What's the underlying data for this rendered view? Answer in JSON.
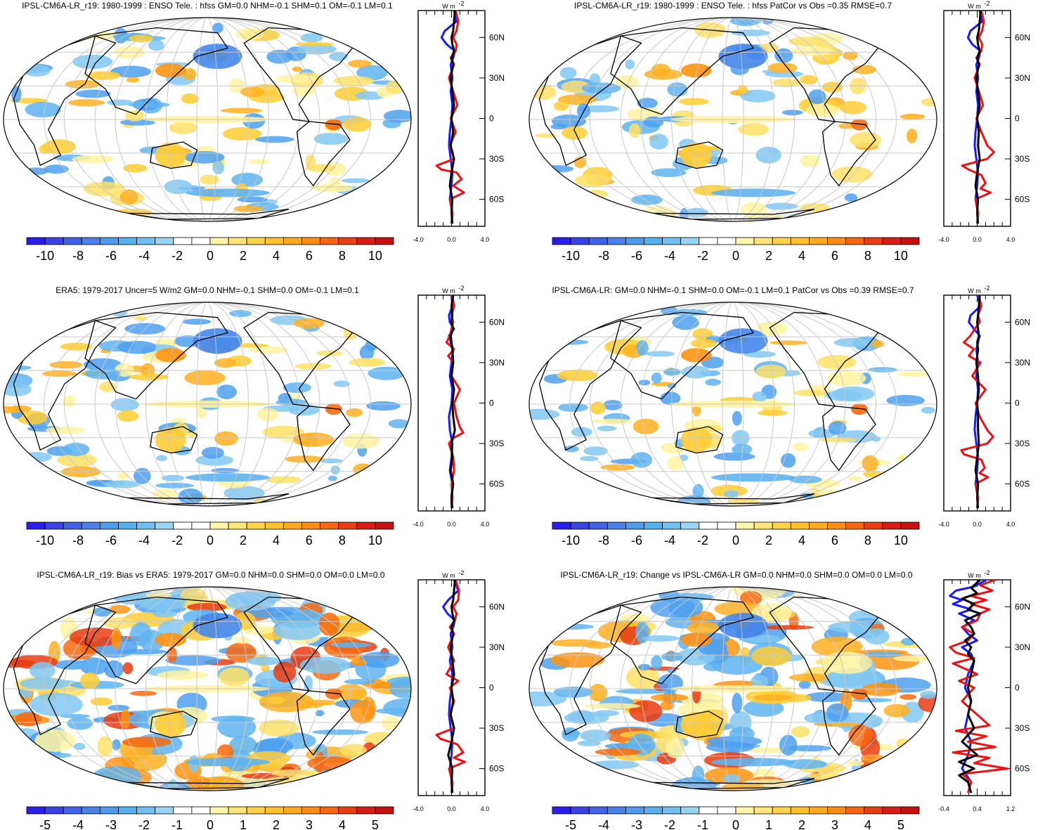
{
  "panels": [
    {
      "title": "IPSL-CM6A-LR_r19: 1980-1999 : ENSO Tele. : hfss GM=0.0 NHM=-0.1 SHM=0.1 OM=-0.1 LM=0.1",
      "colorbar_labels": [
        "-10",
        "-8",
        "-6",
        "-4",
        "-2",
        "0",
        "2",
        "4",
        "6",
        "8",
        "10"
      ],
      "zonal_xticks": [
        "-4.0",
        "0.0",
        "4.0"
      ],
      "zonal_yticks": [
        "60N",
        "30N",
        "0",
        "30S",
        "60S"
      ],
      "zonal_xrange": [
        -4,
        4
      ],
      "unit": "W m",
      "unit_exp": "-2",
      "zonal_series": [
        {
          "color": "#1a1aff",
          "lat": [
            80,
            72,
            65,
            60,
            55,
            50,
            45,
            40,
            30,
            20,
            10,
            0,
            -10,
            -20,
            -30,
            -40,
            -50,
            -60,
            -70,
            -78
          ],
          "val": [
            0.3,
            0.6,
            -0.8,
            -1.2,
            -0.6,
            0.4,
            0.2,
            -0.1,
            0.1,
            -0.1,
            0.1,
            0.0,
            -0.2,
            -0.3,
            -0.1,
            0.1,
            0.0,
            -0.2,
            0.1,
            0.0
          ]
        },
        {
          "color": "#ee1111",
          "lat": [
            80,
            72,
            65,
            60,
            55,
            50,
            45,
            40,
            30,
            20,
            10,
            0,
            -10,
            -20,
            -30,
            -35,
            -38,
            -40,
            -45,
            -50,
            -55,
            -60,
            -70,
            -78
          ],
          "val": [
            0.5,
            0.8,
            0.6,
            0.2,
            0.6,
            0.5,
            -0.1,
            0.3,
            -0.3,
            0.2,
            0.7,
            -0.1,
            0.5,
            -0.2,
            0.3,
            -1.8,
            -1.2,
            0.6,
            1.2,
            0.2,
            1.5,
            -0.2,
            0.1,
            0.0
          ]
        },
        {
          "color": "#000000",
          "lat": [
            80,
            72,
            65,
            60,
            55,
            50,
            45,
            40,
            30,
            20,
            10,
            0,
            -10,
            -20,
            -30,
            -40,
            -50,
            -60,
            -70,
            -78
          ],
          "val": [
            0.4,
            0.3,
            0.2,
            0.0,
            0.1,
            0.3,
            0.0,
            0.2,
            -0.1,
            0.1,
            0.3,
            0.0,
            0.2,
            -0.1,
            0.3,
            0.0,
            -0.2,
            0.1,
            0.0,
            0.1
          ]
        }
      ]
    },
    {
      "title": "IPSL-CM6A-LR_r19: 1980-1999 : ENSO Tele. : hfss PatCor vs Obs =0.35 RMSE=0.7",
      "colorbar_labels": [
        "-10",
        "-8",
        "-6",
        "-4",
        "-2",
        "0",
        "2",
        "4",
        "6",
        "8",
        "10"
      ],
      "zonal_xticks": [
        "-4.0",
        "0.0",
        "4.0"
      ],
      "zonal_yticks": [
        "60N",
        "30N",
        "0",
        "30S",
        "60S"
      ],
      "zonal_xrange": [
        -4,
        4
      ],
      "unit": "W m",
      "unit_exp": "-2",
      "zonal_series": [
        {
          "color": "#1a1aff",
          "lat": [
            80,
            72,
            65,
            60,
            55,
            50,
            45,
            40,
            30,
            20,
            10,
            0,
            -10,
            -20,
            -30,
            -40,
            -50,
            -60,
            -70,
            -78
          ],
          "val": [
            0.3,
            0.6,
            -0.8,
            -1.1,
            -0.6,
            0.4,
            0.2,
            -0.1,
            0.1,
            -0.1,
            0.1,
            0.0,
            -0.2,
            -0.3,
            -0.1,
            0.1,
            0.0,
            -0.2,
            0.1,
            0.0
          ]
        },
        {
          "color": "#ee1111",
          "lat": [
            80,
            72,
            65,
            60,
            55,
            50,
            45,
            40,
            30,
            20,
            10,
            0,
            -10,
            -20,
            -25,
            -30,
            -35,
            -38,
            -42,
            -48,
            -52,
            -55,
            -60,
            -70,
            -78
          ],
          "val": [
            0.5,
            0.8,
            0.6,
            0.2,
            0.6,
            0.5,
            -0.1,
            0.3,
            -0.3,
            0.2,
            0.7,
            -0.1,
            0.5,
            1.2,
            2.0,
            1.2,
            -1.8,
            -1.0,
            0.5,
            1.0,
            0.4,
            1.6,
            -0.2,
            0.1,
            0.0
          ]
        },
        {
          "color": "#000000",
          "lat": [
            80,
            72,
            65,
            60,
            55,
            50,
            45,
            40,
            30,
            20,
            10,
            0,
            -10,
            -20,
            -30,
            -40,
            -50,
            -60,
            -70,
            -78
          ],
          "val": [
            0.4,
            0.3,
            0.2,
            0.0,
            0.1,
            0.3,
            0.0,
            0.2,
            -0.1,
            0.1,
            0.3,
            0.0,
            0.2,
            0.1,
            0.3,
            0.0,
            -0.2,
            0.1,
            0.0,
            0.1
          ]
        }
      ]
    },
    {
      "title": "ERA5: 1979-2017 Uncer=5 W/m2 GM=0.0 NHM=-0.1 SHM=0.0 OM=-0.1 LM=0.1",
      "colorbar_labels": [
        "-10",
        "-8",
        "-6",
        "-4",
        "-2",
        "0",
        "2",
        "4",
        "6",
        "8",
        "10"
      ],
      "zonal_xticks": [
        "-4.0",
        "0.0",
        "4.0"
      ],
      "zonal_yticks": [
        "60N",
        "30N",
        "0",
        "30S",
        "60S"
      ],
      "zonal_xrange": [
        -4,
        4
      ],
      "unit": "W m",
      "unit_exp": "-2",
      "zonal_series": [
        {
          "color": "#1a1aff",
          "lat": [
            80,
            72,
            65,
            60,
            55,
            50,
            45,
            40,
            30,
            20,
            10,
            0,
            -10,
            -20,
            -30,
            -40,
            -50,
            -60,
            -70,
            -78
          ],
          "val": [
            0.0,
            0.1,
            -0.3,
            -0.2,
            0.3,
            -0.3,
            -0.1,
            0.2,
            0.0,
            -0.2,
            0.1,
            0.0,
            -0.3,
            -0.2,
            0.1,
            0.0,
            -0.2,
            0.1,
            0.0,
            0.0
          ]
        },
        {
          "color": "#ee1111",
          "lat": [
            80,
            72,
            65,
            60,
            55,
            50,
            45,
            40,
            35,
            30,
            20,
            10,
            0,
            -10,
            -18,
            -22,
            -26,
            -30,
            -40,
            -50,
            -60,
            -70,
            -78
          ],
          "val": [
            0.1,
            0.3,
            0.0,
            0.2,
            0.0,
            -0.2,
            -0.6,
            0.3,
            -0.4,
            0.2,
            0.0,
            1.0,
            0.3,
            0.6,
            1.0,
            1.4,
            0.2,
            -0.3,
            0.2,
            0.3,
            0.0,
            0.1,
            0.0
          ]
        },
        {
          "color": "#000000",
          "lat": [
            80,
            72,
            65,
            60,
            55,
            50,
            45,
            40,
            30,
            20,
            10,
            0,
            -10,
            -20,
            -30,
            -40,
            -50,
            -60,
            -70,
            -78
          ],
          "val": [
            0.2,
            0.0,
            0.1,
            0.0,
            0.2,
            -0.1,
            0.0,
            0.1,
            0.2,
            0.0,
            0.3,
            0.1,
            0.2,
            0.4,
            0.0,
            0.1,
            -0.1,
            0.2,
            0.0,
            0.1
          ]
        }
      ]
    },
    {
      "title": "IPSL-CM6A-LR: GM=0.0 NHM=-0.1 SHM=0.0 OM=-0.1 LM=0.1 PatCor vs Obs =0.39 RMSE=0.7",
      "colorbar_labels": [
        "-10",
        "-8",
        "-6",
        "-4",
        "-2",
        "0",
        "2",
        "4",
        "6",
        "8",
        "10"
      ],
      "zonal_xticks": [
        "-4.0",
        "0.0",
        "4.0"
      ],
      "zonal_yticks": [
        "60N",
        "30N",
        "0",
        "30S",
        "60S"
      ],
      "zonal_xrange": [
        -4,
        4
      ],
      "unit": "W m",
      "unit_exp": "-2",
      "zonal_series": [
        {
          "color": "#1a1aff",
          "lat": [
            80,
            72,
            65,
            60,
            55,
            50,
            45,
            40,
            30,
            20,
            10,
            0,
            -10,
            -20,
            -30,
            -40,
            -50,
            -60,
            -70,
            -78
          ],
          "val": [
            0.0,
            0.4,
            -0.8,
            -1.0,
            -0.4,
            0.3,
            0.1,
            -0.1,
            0.1,
            -0.1,
            0.1,
            0.0,
            -0.2,
            -0.3,
            -0.1,
            0.1,
            0.0,
            -0.2,
            0.1,
            0.0
          ]
        },
        {
          "color": "#ee1111",
          "lat": [
            80,
            72,
            65,
            60,
            55,
            50,
            45,
            40,
            35,
            30,
            20,
            10,
            0,
            -10,
            -20,
            -25,
            -30,
            -35,
            -38,
            -42,
            -48,
            -52,
            -55,
            -60,
            -70,
            -78
          ],
          "val": [
            0.2,
            0.5,
            0.1,
            0.3,
            -0.3,
            -0.8,
            -1.6,
            -0.4,
            -1.0,
            0.4,
            -0.6,
            1.0,
            -0.2,
            0.3,
            1.2,
            1.9,
            1.2,
            -1.9,
            -1.6,
            0.5,
            0.9,
            0.3,
            1.3,
            -0.2,
            0.1,
            0.0
          ]
        },
        {
          "color": "#000000",
          "lat": [
            80,
            72,
            65,
            60,
            55,
            50,
            45,
            40,
            30,
            20,
            10,
            0,
            -10,
            -20,
            -30,
            -40,
            -50,
            -60,
            -70,
            -78
          ],
          "val": [
            0.3,
            0.2,
            0.1,
            0.0,
            0.1,
            0.2,
            0.0,
            0.1,
            -0.1,
            0.1,
            0.2,
            0.0,
            0.1,
            0.1,
            0.2,
            0.0,
            -0.2,
            0.1,
            0.0,
            0.1
          ]
        }
      ]
    },
    {
      "title": "IPSL-CM6A-LR_r19: Bias vs ERA5: 1979-2017 GM=0.0 NHM=0.0 SHM=0.0 OM=0.0 LM=0.0",
      "colorbar_labels": [
        "-5",
        "-4",
        "-3",
        "-2",
        "-1",
        "0",
        "1",
        "2",
        "3",
        "4",
        "5"
      ],
      "zonal_xticks": [
        "-4.0",
        "0.0",
        "4.0"
      ],
      "zonal_yticks": [
        "60N",
        "30N",
        "0",
        "30S",
        "60S"
      ],
      "zonal_xrange": [
        -4,
        4
      ],
      "unit": "W m",
      "unit_exp": "-2",
      "zonal_series": [
        {
          "color": "#1a1aff",
          "lat": [
            80,
            72,
            65,
            60,
            55,
            50,
            45,
            40,
            30,
            20,
            10,
            0,
            -10,
            -20,
            -30,
            -40,
            -50,
            -60,
            -70,
            -78
          ],
          "val": [
            0.3,
            0.8,
            -0.4,
            -1.0,
            -0.5,
            0.4,
            0.2,
            -0.1,
            0.1,
            -0.2,
            0.1,
            0.0,
            -0.2,
            -0.3,
            -0.1,
            0.1,
            0.0,
            -0.2,
            0.1,
            0.0
          ]
        },
        {
          "color": "#ee1111",
          "lat": [
            80,
            72,
            65,
            60,
            55,
            50,
            45,
            40,
            30,
            20,
            10,
            5,
            0,
            -10,
            -20,
            -30,
            -35,
            -38,
            -42,
            -48,
            -52,
            -55,
            -60,
            -70,
            -78
          ],
          "val": [
            0.5,
            0.9,
            0.8,
            0.2,
            0.6,
            0.4,
            -0.2,
            0.3,
            -0.4,
            0.3,
            -0.6,
            0.8,
            -0.2,
            0.3,
            -0.2,
            0.3,
            -1.8,
            -1.3,
            0.7,
            1.4,
            0.3,
            1.6,
            -0.3,
            0.1,
            0.0
          ]
        },
        {
          "color": "#000000",
          "lat": [
            80,
            72,
            65,
            60,
            55,
            50,
            45,
            40,
            30,
            20,
            10,
            0,
            -10,
            -20,
            -30,
            -40,
            -50,
            -60,
            -70,
            -78
          ],
          "val": [
            0.4,
            0.3,
            0.2,
            0.0,
            0.1,
            0.3,
            0.0,
            0.2,
            -0.1,
            0.1,
            0.3,
            0.0,
            0.2,
            -0.1,
            0.3,
            0.0,
            -0.4,
            0.1,
            0.0,
            0.1
          ]
        }
      ]
    },
    {
      "title": "IPSL-CM6A-LR_r19: Change vs IPSL-CM6A-LR GM=0.0 NHM=0.0 SHM=0.0 OM=0.0 LM=0.0",
      "colorbar_labels": [
        "-5",
        "-4",
        "-3",
        "-2",
        "-1",
        "0",
        "1",
        "2",
        "3",
        "4",
        "5"
      ],
      "zonal_xticks": [
        "-0.4",
        "0.4",
        "1.2"
      ],
      "zonal_yticks": [
        "60N",
        "30N",
        "0",
        "30S",
        "60S"
      ],
      "zonal_xrange": [
        -0.8,
        1.4
      ],
      "unit": "W m",
      "unit_exp": "-2",
      "zonal_series": [
        {
          "color": "#1a1aff",
          "lat": [
            80,
            75,
            72,
            68,
            65,
            62,
            58,
            55,
            50,
            45,
            40,
            35,
            30,
            25,
            20,
            10,
            0,
            -10,
            -20,
            -30,
            -40,
            -50,
            -60,
            -70,
            -78
          ],
          "val": [
            0.6,
            0.2,
            -0.4,
            -0.6,
            -0.2,
            -0.5,
            0.1,
            -0.3,
            0.2,
            -0.2,
            0.0,
            0.3,
            -0.2,
            0.1,
            0.2,
            0.0,
            -0.1,
            0.1,
            0.0,
            -0.1,
            0.1,
            0.0,
            -0.2,
            0.1,
            0.0
          ]
        },
        {
          "color": "#ee1111",
          "lat": [
            80,
            76,
            72,
            68,
            65,
            62,
            58,
            55,
            50,
            45,
            40,
            35,
            30,
            26,
            22,
            18,
            10,
            5,
            0,
            -10,
            -20,
            -28,
            -32,
            -36,
            -40,
            -44,
            -48,
            -52,
            -56,
            -60,
            -64,
            -70,
            -78
          ],
          "val": [
            0.9,
            0.4,
            0.8,
            0.1,
            0.6,
            0.1,
            0.7,
            0.4,
            0.3,
            -0.2,
            0.2,
            0.0,
            -0.6,
            -0.4,
            0.2,
            -0.5,
            0.3,
            -0.3,
            0.2,
            -0.2,
            0.3,
            0.7,
            -0.4,
            0.6,
            0.0,
            0.9,
            -0.5,
            0.7,
            0.2,
            1.3,
            -0.2,
            0.1,
            0.0
          ]
        },
        {
          "color": "#000000",
          "lat": [
            80,
            74,
            70,
            66,
            62,
            58,
            55,
            50,
            45,
            40,
            35,
            30,
            25,
            20,
            10,
            0,
            -10,
            -20,
            -30,
            -40,
            -50,
            -55,
            -60,
            -65,
            -70,
            -78
          ],
          "val": [
            0.4,
            0.1,
            0.3,
            -0.2,
            0.2,
            0.0,
            0.4,
            -0.1,
            0.1,
            0.2,
            -0.1,
            0.1,
            0.0,
            0.2,
            0.1,
            0.0,
            0.1,
            0.0,
            0.2,
            -0.2,
            0.3,
            -0.3,
            0.2,
            -0.3,
            0.0,
            0.1
          ]
        }
      ]
    }
  ]
}
